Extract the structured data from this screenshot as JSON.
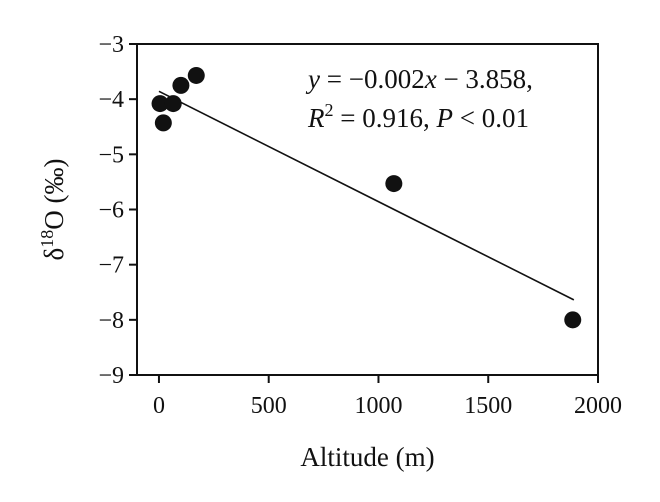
{
  "chart_data": {
    "type": "scatter",
    "title": "",
    "xlabel": "Altitude (m)",
    "ylabel": {
      "delta": "δ",
      "sup": "18",
      "rest": "O (‰)"
    },
    "xlim": [
      -100,
      2000
    ],
    "ylim": [
      -9,
      -3
    ],
    "xticks": [
      0,
      500,
      1000,
      1500,
      2000
    ],
    "yticks": [
      -3,
      -4,
      -5,
      -6,
      -7,
      -8,
      -9
    ],
    "xtick_labels": [
      "0",
      "500",
      "1000",
      "1500",
      "2000"
    ],
    "ytick_labels": [
      "−3",
      "−4",
      "−5",
      "−6",
      "−7",
      "−8",
      "−9"
    ],
    "grid": false,
    "points": [
      {
        "x": 5,
        "y": -4.08
      },
      {
        "x": 20,
        "y": -4.43
      },
      {
        "x": 65,
        "y": -4.08
      },
      {
        "x": 100,
        "y": -3.75
      },
      {
        "x": 170,
        "y": -3.57
      },
      {
        "x": 1070,
        "y": -5.53
      },
      {
        "x": 1885,
        "y": -8.0
      }
    ],
    "fit_line": {
      "x": [
        0,
        1890
      ],
      "slope": -0.002,
      "intercept": -3.858
    },
    "annotation": {
      "line1": {
        "y": "y",
        "rest": " = −0.002",
        "x": "x",
        "tail": " − 3.858,"
      },
      "line2": {
        "R": "R",
        "sup": "2",
        "mid": " = 0.916, ",
        "P": "P",
        "tail": " < 0.01"
      }
    }
  }
}
